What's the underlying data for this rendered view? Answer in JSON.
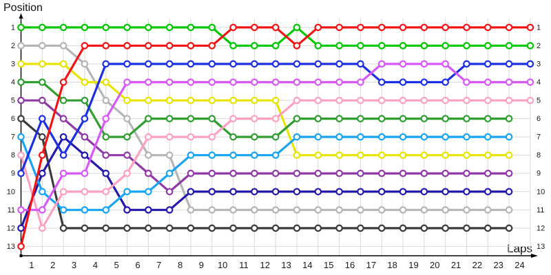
{
  "page": {
    "y_axis_title": "Position",
    "x_axis_title": "Laps"
  },
  "axes": {
    "lap_labels": [
      "1",
      "2",
      "3",
      "4",
      "5",
      "6",
      "7",
      "8",
      "9",
      "10",
      "11",
      "12",
      "13",
      "14",
      "15",
      "16",
      "17",
      "18",
      "19",
      "20",
      "21",
      "22",
      "23",
      "24"
    ],
    "position_labels_left": [
      "1",
      "2",
      "3",
      "4",
      "5",
      "6",
      "7",
      "8",
      "9",
      "10",
      "11",
      "12",
      "13"
    ],
    "position_labels_right": [
      "1",
      "2",
      "3",
      "4",
      "5",
      "6",
      "7",
      "8",
      "9",
      "10",
      "11",
      "12",
      "13"
    ]
  },
  "colors": {
    "grid": "#d9d9d9",
    "axis": "#000000",
    "text": "#1a1a1a"
  },
  "chart_data": {
    "type": "line",
    "title": "",
    "xlabel": "Laps",
    "ylabel": "Position",
    "x_range": [
      0,
      24
    ],
    "y_range": [
      1,
      13
    ],
    "y_inverted": true,
    "grid": true,
    "legend": "none",
    "marker": "open-circle",
    "series": [
      {
        "name": "gray",
        "color": "#b5b5b5",
        "start_lap": 0,
        "positions": [
          2,
          2,
          2,
          3,
          5,
          6,
          8,
          8,
          11,
          11,
          11,
          11,
          11,
          11,
          11,
          11,
          11,
          11,
          11,
          11,
          11,
          11,
          11,
          11
        ]
      },
      {
        "name": "yellow",
        "color": "#e7e400",
        "start_lap": 0,
        "positions": [
          3,
          3,
          3,
          4,
          4,
          5,
          5,
          5,
          5,
          5,
          5,
          5,
          5,
          8,
          8,
          8,
          8,
          8,
          8,
          8,
          8,
          8,
          8,
          8
        ]
      },
      {
        "name": "dark-green",
        "color": "#2e9e2e",
        "start_lap": 0,
        "positions": [
          4,
          4,
          5,
          5,
          7,
          7,
          6,
          6,
          6,
          6,
          7,
          7,
          7,
          6,
          6,
          6,
          6,
          6,
          6,
          6,
          6,
          6,
          6,
          6
        ]
      },
      {
        "name": "purple",
        "color": "#9138a8",
        "start_lap": 0,
        "positions": [
          5,
          5,
          6,
          7,
          8,
          8,
          9,
          10,
          9,
          9,
          9,
          9,
          9,
          9,
          9,
          9,
          9,
          9,
          9,
          9,
          9,
          9,
          9,
          9
        ]
      },
      {
        "name": "black",
        "color": "#3c3c3c",
        "start_lap": 0,
        "positions": [
          6,
          7,
          12,
          12,
          12,
          12,
          12,
          12,
          12,
          12,
          12,
          12,
          12,
          12,
          12,
          12,
          12,
          12,
          12,
          12,
          12,
          12,
          12,
          12
        ]
      },
      {
        "name": "navy",
        "color": "#2318ad",
        "start_lap": 0,
        "positions": [
          12,
          9,
          7,
          8,
          9,
          11,
          11,
          11,
          10,
          10,
          10,
          10,
          10,
          10,
          10,
          10,
          10,
          10,
          10,
          10,
          10,
          10,
          10,
          10
        ]
      },
      {
        "name": "cyan",
        "color": "#18a4f5",
        "start_lap": 0,
        "positions": [
          7,
          10,
          11,
          11,
          11,
          10,
          10,
          9,
          8,
          8,
          8,
          8,
          8,
          7,
          7,
          7,
          7,
          7,
          7,
          7,
          7,
          7,
          7,
          7
        ]
      },
      {
        "name": "pink",
        "color": "#ffa0bd",
        "start_lap": 0,
        "positions": [
          8,
          12,
          10,
          10,
          10,
          9,
          7,
          7,
          7,
          7,
          6,
          6,
          6,
          5,
          5,
          5,
          5,
          5,
          5,
          5,
          5,
          5,
          5,
          5,
          5
        ]
      },
      {
        "name": "blue",
        "color": "#1c2fe3",
        "start_lap": 0,
        "positions": [
          9,
          6,
          8,
          6,
          3,
          3,
          3,
          3,
          3,
          3,
          3,
          3,
          3,
          3,
          3,
          3,
          3,
          4,
          4,
          4,
          4,
          3,
          3,
          3,
          3
        ]
      },
      {
        "name": "magenta",
        "color": "#d957fa",
        "start_lap": 0,
        "positions": [
          11,
          11,
          9,
          9,
          6,
          4,
          4,
          4,
          4,
          4,
          4,
          4,
          4,
          4,
          4,
          4,
          4,
          3,
          3,
          3,
          3,
          4,
          4,
          4,
          4
        ]
      },
      {
        "name": "green",
        "color": "#00c800",
        "start_lap": 0,
        "positions": [
          1,
          1,
          1,
          1,
          1,
          1,
          1,
          1,
          1,
          1,
          2,
          2,
          2,
          1,
          2,
          2,
          2,
          2,
          2,
          2,
          2,
          2,
          2,
          2,
          2
        ]
      },
      {
        "name": "red",
        "color": "#f01414",
        "start_lap": 0,
        "positions": [
          13,
          8,
          4,
          2,
          2,
          2,
          2,
          2,
          2,
          2,
          1,
          1,
          1,
          2,
          1,
          1,
          1,
          1,
          1,
          1,
          1,
          1,
          1,
          1,
          1
        ]
      }
    ]
  }
}
